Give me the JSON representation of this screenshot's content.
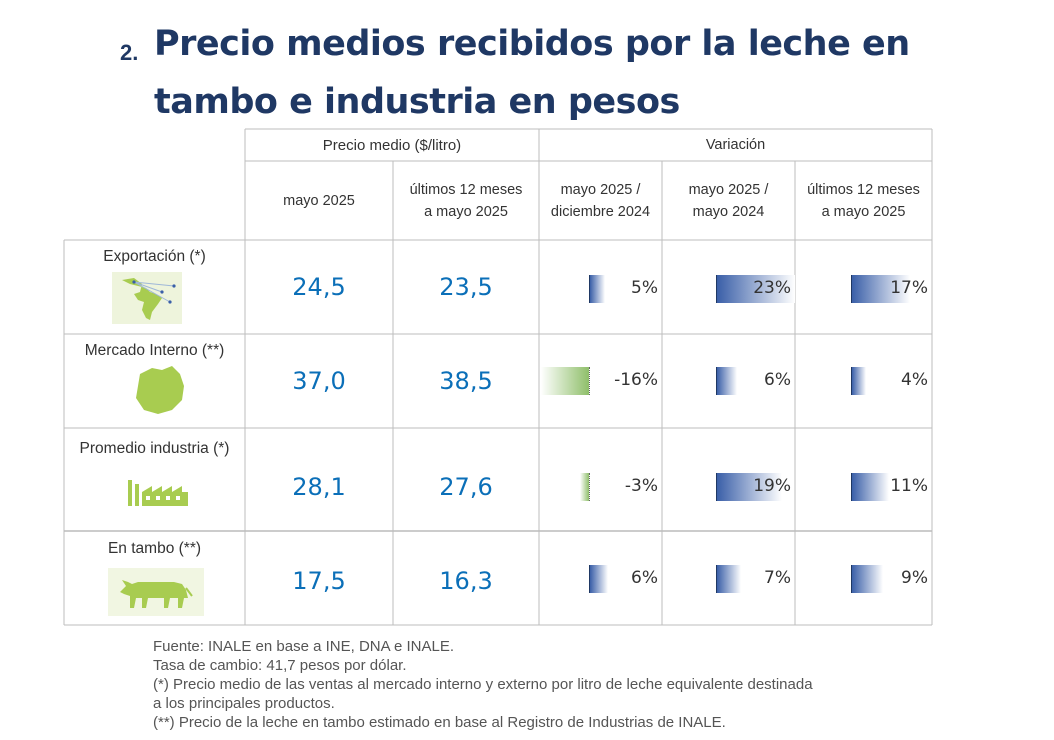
{
  "title": {
    "number": "2.",
    "line1": "Precio medios recibidos por la leche en",
    "line2": "tambo e industria en pesos"
  },
  "table": {
    "group_price": "Precio medio ($/litro)",
    "group_variation": "Variación",
    "columns": {
      "c1": "mayo 2025",
      "c2a": "últimos 12 meses",
      "c2b": "a mayo 2025",
      "c3a": "mayo 2025 /",
      "c3b": "diciembre 2024",
      "c4a": "mayo 2025 /",
      "c4b": "mayo 2024",
      "c5a": "últimos 12 meses",
      "c5b": "a mayo 2025"
    },
    "rows": [
      {
        "label": "Exportación (*)",
        "icon": "export-map-icon",
        "p1": "24,5",
        "p2": "23,5",
        "v1": "5%",
        "v2": "23%",
        "v3": "17%",
        "v1n": 5,
        "v2n": 23,
        "v3n": 17
      },
      {
        "label": "Mercado Interno (**)",
        "icon": "uruguay-map-icon",
        "p1": "37,0",
        "p2": "38,5",
        "v1": "-16%",
        "v2": "6%",
        "v3": "4%",
        "v1n": -16,
        "v2n": 6,
        "v3n": 4
      },
      {
        "label": "Promedio industria (*)",
        "icon": "factory-icon",
        "p1": "28,1",
        "p2": "27,6",
        "v1": "-3%",
        "v2": "19%",
        "v3": "11%",
        "v1n": -3,
        "v2n": 19,
        "v3n": 11
      },
      {
        "label": "En tambo (**)",
        "icon": "cow-icon",
        "p1": "17,5",
        "p2": "16,3",
        "v1": "6%",
        "v2": "7%",
        "v3": "9%",
        "v1n": 6,
        "v2n": 7,
        "v3n": 9
      }
    ]
  },
  "footer": {
    "l1": "Fuente: INALE en base a INE, DNA e INALE.",
    "l2": "Tasa de cambio: 41,7 pesos por dólar.",
    "l3": "(*) Precio medio de las ventas al mercado interno y externo por litro de leche equivalente destinada",
    "l4": "a los principales productos.",
    "l5": "(**) Precio de la leche en tambo estimado en base al Registro de Industrias de INALE."
  },
  "colors": {
    "title": "#1f3864",
    "price": "#0b6fb8",
    "positive_bar": "#3a5fa8",
    "negative_bar": "#8fbf6a",
    "icon_green": "#a8cc50"
  }
}
